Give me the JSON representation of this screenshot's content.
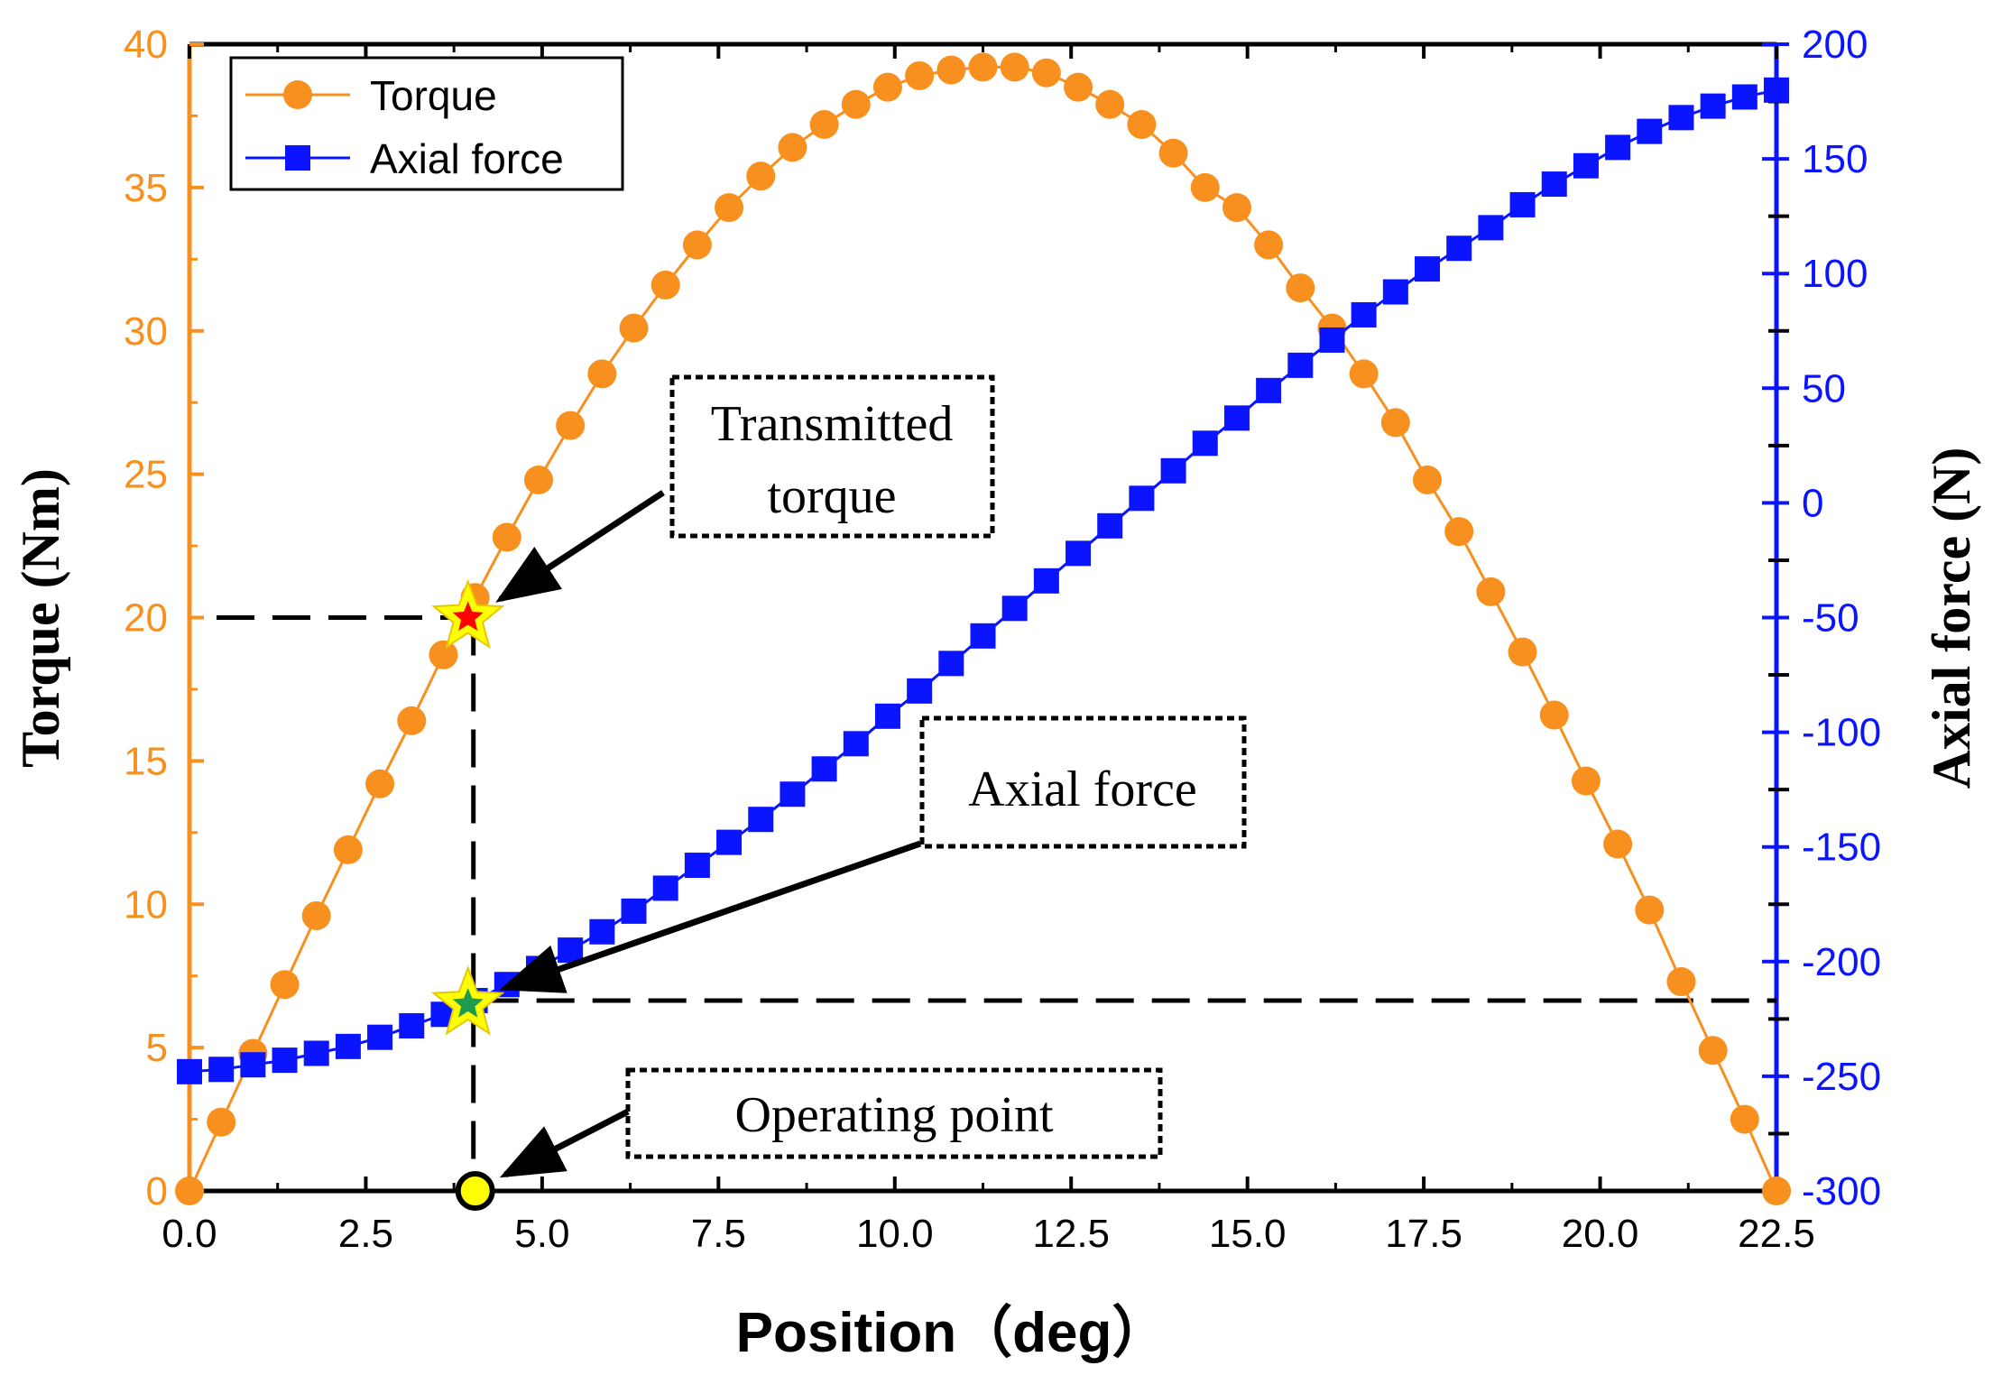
{
  "chart_data": {
    "type": "line",
    "xlabel": "Position（deg）",
    "ylabel_left": "Torque (Nm)",
    "ylabel_right": "Axial force (N)",
    "xlim": [
      0,
      22.5
    ],
    "ylim_left": [
      0,
      40
    ],
    "ylim_right": [
      -300,
      200
    ],
    "x_ticks": [
      "0.0",
      "2.5",
      "5.0",
      "7.5",
      "10.0",
      "12.5",
      "15.0",
      "17.5",
      "20.0",
      "22.5"
    ],
    "y_left_ticks": [
      "0",
      "5",
      "10",
      "15",
      "20",
      "25",
      "30",
      "35",
      "40"
    ],
    "y_right_ticks": [
      "-300",
      "-250",
      "-200",
      "-150",
      "-100",
      "-50",
      "0",
      "50",
      "100",
      "150",
      "200"
    ],
    "legend_position": "top-left",
    "series": [
      {
        "name": "Torque",
        "axis": "left",
        "color": "#f7901e",
        "marker": "circle",
        "x": [
          0,
          0.45,
          0.9,
          1.35,
          1.8,
          2.25,
          2.7,
          3.15,
          3.6,
          4.05,
          4.5,
          4.95,
          5.4,
          5.85,
          6.3,
          6.75,
          7.2,
          7.65,
          8.1,
          8.55,
          9.0,
          9.45,
          9.9,
          10.35,
          10.8,
          11.25,
          11.7,
          12.15,
          12.6,
          13.05,
          13.5,
          13.95,
          14.4,
          14.85,
          15.3,
          15.75,
          16.2,
          16.65,
          17.1,
          17.55,
          18.0,
          18.45,
          18.9,
          19.35,
          19.8,
          20.25,
          20.7,
          21.15,
          21.6,
          22.05,
          22.5
        ],
        "y": [
          0,
          2.4,
          4.8,
          7.2,
          9.6,
          11.9,
          14.2,
          16.4,
          18.7,
          20.7,
          22.8,
          24.8,
          26.7,
          28.5,
          30.1,
          31.6,
          33.0,
          34.3,
          35.4,
          36.4,
          37.2,
          37.9,
          38.5,
          38.9,
          39.1,
          39.2,
          39.2,
          39.0,
          38.5,
          37.9,
          37.2,
          36.2,
          35.0,
          34.3,
          33.0,
          31.5,
          30.1,
          28.5,
          26.8,
          24.8,
          23.0,
          20.9,
          18.8,
          16.6,
          14.3,
          12.1,
          9.8,
          7.3,
          4.9,
          2.5,
          0
        ]
      },
      {
        "name": "Axial force",
        "axis": "right",
        "color": "#0a14ff",
        "marker": "square",
        "x": [
          0,
          0.45,
          0.9,
          1.35,
          1.8,
          2.25,
          2.7,
          3.15,
          3.6,
          4.05,
          4.5,
          4.95,
          5.4,
          5.85,
          6.3,
          6.75,
          7.2,
          7.65,
          8.1,
          8.55,
          9.0,
          9.45,
          9.9,
          10.35,
          10.8,
          11.25,
          11.7,
          12.15,
          12.6,
          13.05,
          13.5,
          13.95,
          14.4,
          14.85,
          15.3,
          15.75,
          16.2,
          16.65,
          17.1,
          17.55,
          18.0,
          18.45,
          18.9,
          19.35,
          19.8,
          20.25,
          20.7,
          21.15,
          21.6,
          22.05,
          22.5
        ],
        "y": [
          -248,
          -247,
          -245,
          -243,
          -240,
          -237,
          -233,
          -228,
          -223,
          -217,
          -210,
          -203,
          -195,
          -187,
          -178,
          -168,
          -158,
          -148,
          -138,
          -127,
          -116,
          -105,
          -93,
          -82,
          -70,
          -58,
          -46,
          -34,
          -22,
          -10,
          2,
          14,
          26,
          37,
          49,
          60,
          71,
          82,
          92,
          102,
          111,
          120,
          130,
          139,
          147,
          155,
          162,
          168,
          173,
          177,
          180
        ]
      }
    ],
    "reference_lines": {
      "torque_level": 20,
      "axial_force_level": -217,
      "position": 4.0
    },
    "annotations": [
      {
        "lines": [
          "Transmitted",
          "torque"
        ],
        "target": "torque_star"
      },
      {
        "lines": [
          "Axial force"
        ],
        "target": "axial_star"
      },
      {
        "lines": [
          "Operating point"
        ],
        "target": "operating_point"
      }
    ]
  }
}
